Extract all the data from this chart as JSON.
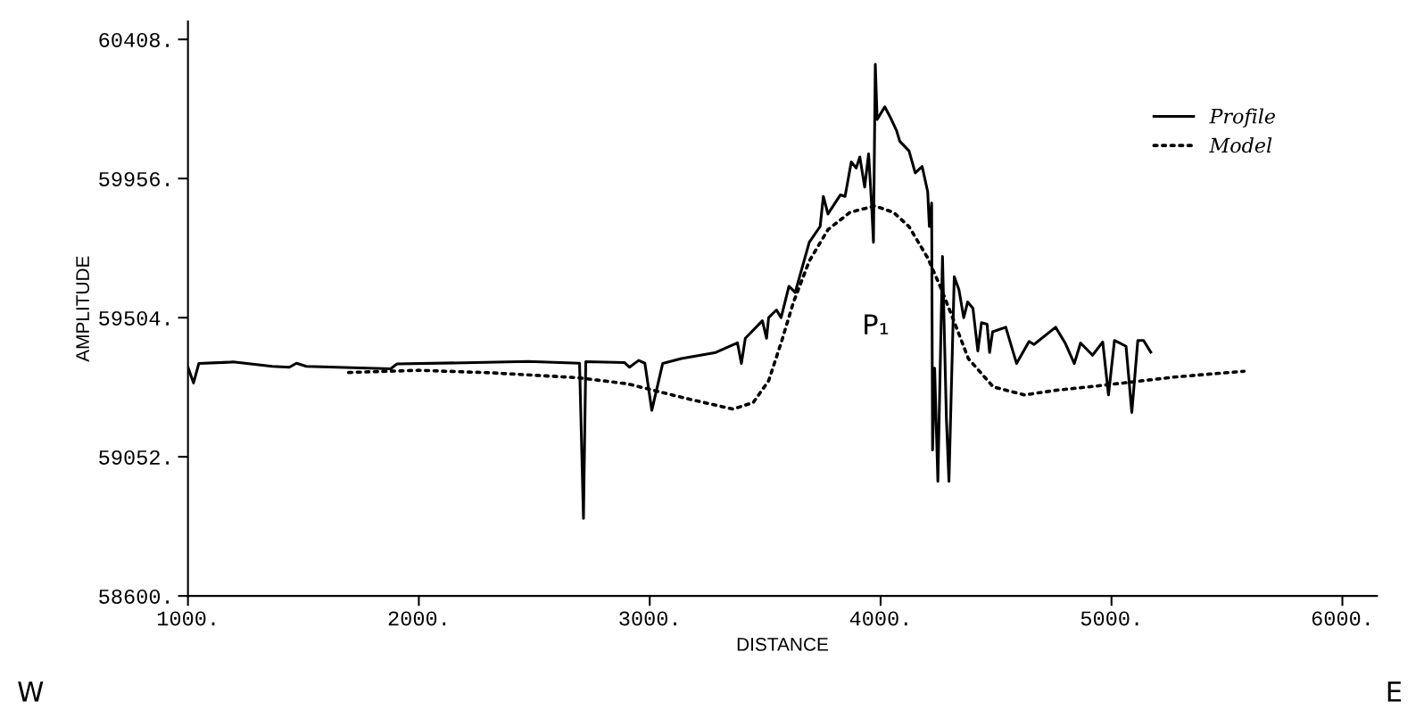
{
  "chart_data": {
    "type": "line",
    "xlabel": "DISTANCE",
    "ylabel": "AMPLITUDE",
    "xlim": [
      1000,
      6150
    ],
    "ylim": [
      58600,
      60466
    ],
    "xticks": [
      {
        "value": 1000,
        "label": "1000."
      },
      {
        "value": 2000,
        "label": "2000."
      },
      {
        "value": 3000,
        "label": "3000."
      },
      {
        "value": 4000,
        "label": "4000."
      },
      {
        "value": 5000,
        "label": "5000."
      },
      {
        "value": 6000,
        "label": "6000."
      }
    ],
    "yticks": [
      {
        "value": 58600,
        "label": "58600."
      },
      {
        "value": 59052,
        "label": "59052."
      },
      {
        "value": 59504,
        "label": "59504."
      },
      {
        "value": 59956,
        "label": "59956."
      },
      {
        "value": 60408,
        "label": "60408."
      }
    ],
    "grid": false,
    "legend": "top right",
    "series": [
      {
        "name": "Profile",
        "color": "#000000",
        "line_style": "solid",
        "x": [
          1000,
          1024,
          1047,
          1196,
          1365,
          1439,
          1470,
          1513,
          1878,
          1905,
          2243,
          2473,
          2696,
          2713,
          2723,
          2891,
          2912,
          2952,
          2979,
          3009,
          3056,
          3137,
          3286,
          3380,
          3397,
          3414,
          3488,
          3506,
          3515,
          3549,
          3569,
          3603,
          3630,
          3691,
          3738,
          3752,
          3772,
          3826,
          3846,
          3873,
          3894,
          3910,
          3931,
          3948,
          3961,
          3969,
          3977,
          3985,
          4018,
          4040,
          4069,
          4083,
          4123,
          4150,
          4180,
          4204,
          4211,
          4221,
          4225,
          4234,
          4248,
          4268,
          4285,
          4296,
          4319,
          4339,
          4360,
          4377,
          4400,
          4421,
          4437,
          4461,
          4472,
          4485,
          4542,
          4589,
          4643,
          4664,
          4758,
          4799,
          4839,
          4866,
          4918,
          4962,
          4987,
          5013,
          5063,
          5088,
          5114,
          5139,
          5170
        ],
        "values": [
          59343,
          59292,
          59355,
          59360,
          59346,
          59343,
          59356,
          59346,
          59338,
          59354,
          59358,
          59362,
          59356,
          58852,
          59361,
          59358,
          59343,
          59365,
          59356,
          59203,
          59355,
          59371,
          59391,
          59422,
          59355,
          59437,
          59494,
          59437,
          59504,
          59529,
          59504,
          59606,
          59586,
          59749,
          59800,
          59898,
          59841,
          59903,
          59898,
          60010,
          59990,
          60026,
          59928,
          60036,
          59872,
          59749,
          60327,
          60148,
          60189,
          60158,
          60112,
          60077,
          60046,
          59974,
          59995,
          59913,
          59800,
          59877,
          59074,
          59340,
          58972,
          59703,
          59176,
          58972,
          59637,
          59596,
          59504,
          59555,
          59534,
          59396,
          59488,
          59483,
          59391,
          59458,
          59473,
          59355,
          59427,
          59417,
          59473,
          59422,
          59355,
          59422,
          59382,
          59425,
          59253,
          59430,
          59411,
          59196,
          59430,
          59430,
          59392
        ]
      },
      {
        "name": "Model",
        "color": "#000000",
        "line_style": "dotted",
        "x": [
          1696,
          2000,
          2310,
          2689,
          2905,
          3043,
          3178,
          3360,
          3448,
          3515,
          3569,
          3623,
          3691,
          3772,
          3867,
          3975,
          4056,
          4123,
          4204,
          4258,
          4312,
          4380,
          4488,
          4623,
          4758,
          4961,
          5271,
          5574
        ],
        "values": [
          59326,
          59333,
          59325,
          59309,
          59289,
          59263,
          59238,
          59207,
          59228,
          59299,
          59422,
          59555,
          59688,
          59790,
          59846,
          59867,
          59846,
          59800,
          59698,
          59606,
          59504,
          59371,
          59279,
          59253,
          59268,
          59284,
          59311,
          59330
        ]
      }
    ],
    "annotations": [
      "P₁",
      "W",
      "E"
    ]
  }
}
